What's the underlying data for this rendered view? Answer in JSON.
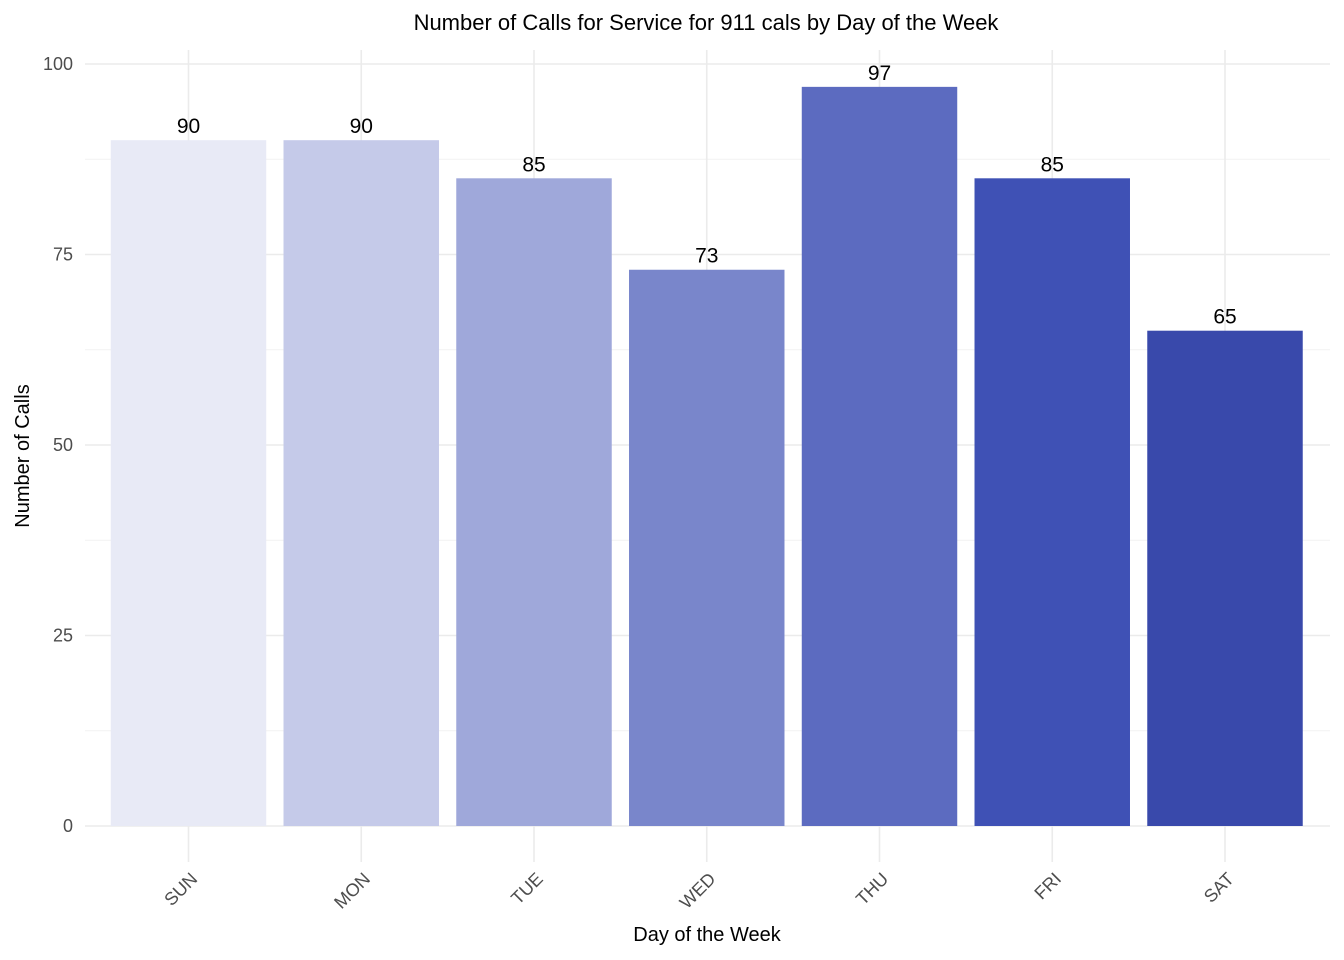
{
  "chart_data": {
    "type": "bar",
    "title": "Number of Calls for Service for 911 cals by Day of the Week",
    "xlabel": "Day of the Week",
    "ylabel": "Number of Calls",
    "categories": [
      "SUN",
      "MON",
      "TUE",
      "WED",
      "THU",
      "FRI",
      "SAT"
    ],
    "values": [
      90,
      90,
      85,
      73,
      97,
      85,
      65
    ],
    "data_labels": [
      "90",
      "90",
      "85",
      "73",
      "97",
      "85",
      "65"
    ],
    "colors": [
      "#e8eaf6",
      "#c5cae9",
      "#9fa8da",
      "#7986cb",
      "#5c6bc0",
      "#3f51b5",
      "#3949ab"
    ],
    "ylim": [
      0,
      100
    ],
    "yticks": [
      0,
      25,
      50,
      75,
      100
    ],
    "ytick_labels": [
      "0",
      "25",
      "50",
      "75",
      "100"
    ],
    "grid": true,
    "legend": "none"
  }
}
